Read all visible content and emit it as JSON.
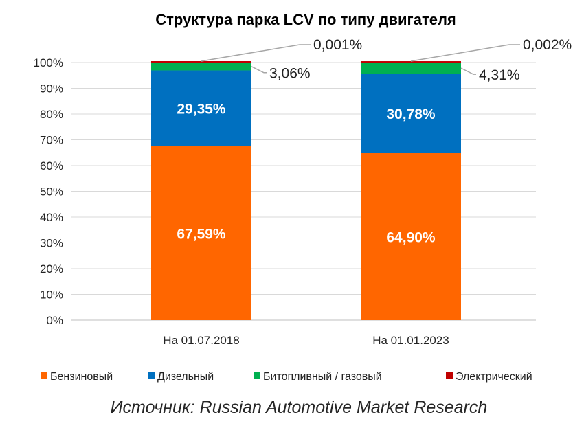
{
  "chart_data": {
    "type": "bar",
    "stacked": true,
    "title": "Структура парка LCV по типу двигателя",
    "categories": [
      "На 01.07.2018",
      "На 01.01.2023"
    ],
    "series": [
      {
        "name": "Бензиновый",
        "color": "#FF6600",
        "values": [
          67.59,
          64.9
        ],
        "labels": [
          "67,59%",
          "64,90%"
        ]
      },
      {
        "name": "Дизельный",
        "color": "#0070C0",
        "values": [
          29.35,
          30.78
        ],
        "labels": [
          "29,35%",
          "30,78%"
        ]
      },
      {
        "name": "Битопливный / газовый",
        "color": "#00B050",
        "values": [
          3.06,
          4.31
        ],
        "labels": [
          "3,06%",
          "4,31%"
        ]
      },
      {
        "name": "Электрический",
        "color": "#C00000",
        "values": [
          0.001,
          0.002
        ],
        "labels": [
          "0,001%",
          "0,002%"
        ]
      }
    ],
    "ylim": [
      0,
      100
    ],
    "yticks": [
      "0%",
      "10%",
      "20%",
      "30%",
      "40%",
      "50%",
      "60%",
      "70%",
      "80%",
      "90%",
      "100%"
    ],
    "grid": true,
    "legend_position": "bottom"
  },
  "source": "Источник: Russian Automotive Market Research"
}
